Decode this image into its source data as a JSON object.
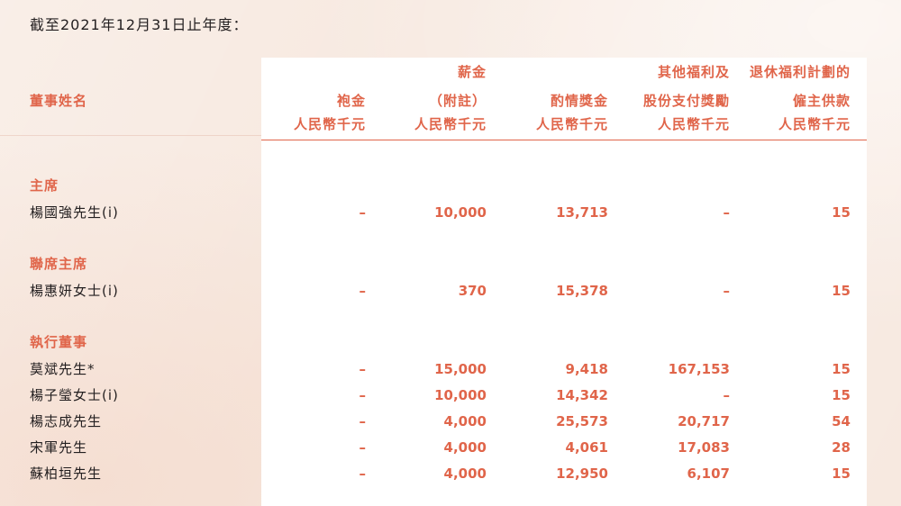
{
  "caption": "截至2021年12月31日止年度：",
  "header": {
    "name_col": "董事姓名",
    "col1": [
      "袍金",
      "人民幣千元"
    ],
    "col2": [
      "薪金",
      "（附註）",
      "人民幣千元"
    ],
    "col3": [
      "酌情獎金",
      "人民幣千元"
    ],
    "col4": [
      "其他福利及",
      "股份支付獎勵",
      "人民幣千元"
    ],
    "col5": [
      "退休福利計劃的",
      "僱主供款",
      "人民幣千元"
    ]
  },
  "sections": [
    {
      "title": "主席",
      "rows": [
        {
          "name": "楊國強先生(i)",
          "values": [
            "–",
            "10,000",
            "13,713",
            "–",
            "15"
          ]
        }
      ]
    },
    {
      "title": "聯席主席",
      "rows": [
        {
          "name": "楊惠妍女士(i)",
          "values": [
            "–",
            "370",
            "15,378",
            "–",
            "15"
          ]
        }
      ]
    },
    {
      "title": "執行董事",
      "rows": [
        {
          "name": "莫斌先生*",
          "values": [
            "–",
            "15,000",
            "9,418",
            "167,153",
            "15"
          ]
        },
        {
          "name": "楊子瑩女士(i)",
          "values": [
            "–",
            "10,000",
            "14,342",
            "–",
            "15"
          ]
        },
        {
          "name": "楊志成先生",
          "values": [
            "–",
            "4,000",
            "25,573",
            "20,717",
            "54"
          ]
        },
        {
          "name": "宋軍先生",
          "values": [
            "–",
            "4,000",
            "4,061",
            "17,083",
            "28"
          ]
        },
        {
          "name": "蘇柏垣先生",
          "values": [
            "–",
            "4,000",
            "12,950",
            "6,107",
            "15"
          ]
        }
      ]
    }
  ]
}
